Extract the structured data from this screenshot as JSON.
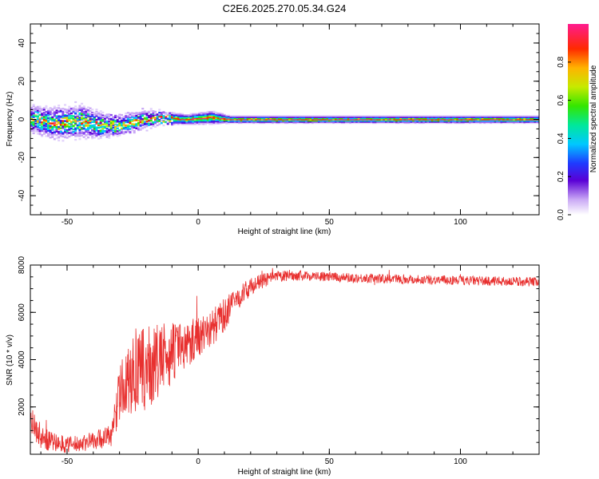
{
  "title": "C2E6.2025.270.05.34.G24",
  "chart_data": [
    {
      "type": "heatmap",
      "xlabel": "Height of straight line (km)",
      "ylabel": "Frequency (Hz)",
      "xlim": [
        -64,
        130
      ],
      "ylim": [
        -50,
        50
      ],
      "xticks": [
        "-50",
        "0",
        "50",
        "100"
      ],
      "yticks": [
        "-40",
        "-20",
        "0",
        "20",
        "40"
      ],
      "grid": false,
      "colorbar": {
        "label": "Normalized spectral amplitude",
        "range": [
          0,
          1
        ],
        "ticks": [
          "0.0",
          "0.2",
          "0.4",
          "0.6",
          "0.8"
        ]
      },
      "band_profile": [
        {
          "x": -64,
          "center": 0,
          "halfwidth": 4
        },
        {
          "x": -55,
          "center": -2,
          "halfwidth": 5
        },
        {
          "x": -45,
          "center": -1,
          "halfwidth": 5
        },
        {
          "x": -38,
          "center": -3,
          "halfwidth": 4
        },
        {
          "x": -30,
          "center": -3,
          "halfwidth": 3
        },
        {
          "x": -22,
          "center": 0,
          "halfwidth": 3
        },
        {
          "x": -15,
          "center": 1,
          "halfwidth": 2
        },
        {
          "x": -5,
          "center": 0,
          "halfwidth": 1.5
        },
        {
          "x": 5,
          "center": 1,
          "halfwidth": 2
        },
        {
          "x": 12,
          "center": 0,
          "halfwidth": 1
        },
        {
          "x": 130,
          "center": 0,
          "halfwidth": 1
        }
      ]
    },
    {
      "type": "line",
      "xlabel": "Height of straight line (km)",
      "ylabel": "SNR (10 * v/v)",
      "xlim": [
        -64,
        130
      ],
      "ylim": [
        0,
        8000
      ],
      "xticks": [
        "-50",
        "0",
        "50",
        "100"
      ],
      "yticks": [
        "2000",
        "4000",
        "6000",
        "8000"
      ],
      "grid": false,
      "series": [
        {
          "color": "#e8302f",
          "envelope": {
            "x": [
              -64,
              -60,
              -55,
              -50,
              -45,
              -40,
              -36,
              -33,
              -30,
              -25,
              -20,
              -15,
              -10,
              -5,
              0,
              5,
              10,
              15,
              20,
              25,
              30,
              35,
              40,
              50,
              60,
              80,
              100,
              120,
              130
            ],
            "y": [
              1500,
              700,
              500,
              400,
              450,
              600,
              700,
              800,
              2600,
              3300,
              3600,
              3900,
              4300,
              4600,
              5000,
              5300,
              5900,
              6600,
              7100,
              7350,
              7500,
              7550,
              7550,
              7500,
              7450,
              7400,
              7350,
              7300,
              7300
            ],
            "noise": [
              600,
              500,
              400,
              350,
              350,
              400,
              450,
              500,
              1200,
              1600,
              1800,
              1600,
              1300,
              1000,
              900,
              800,
              700,
              500,
              350,
              300,
              250,
              220,
              200,
              200,
              200,
              200,
              200,
              200,
              200
            ]
          }
        }
      ]
    }
  ]
}
